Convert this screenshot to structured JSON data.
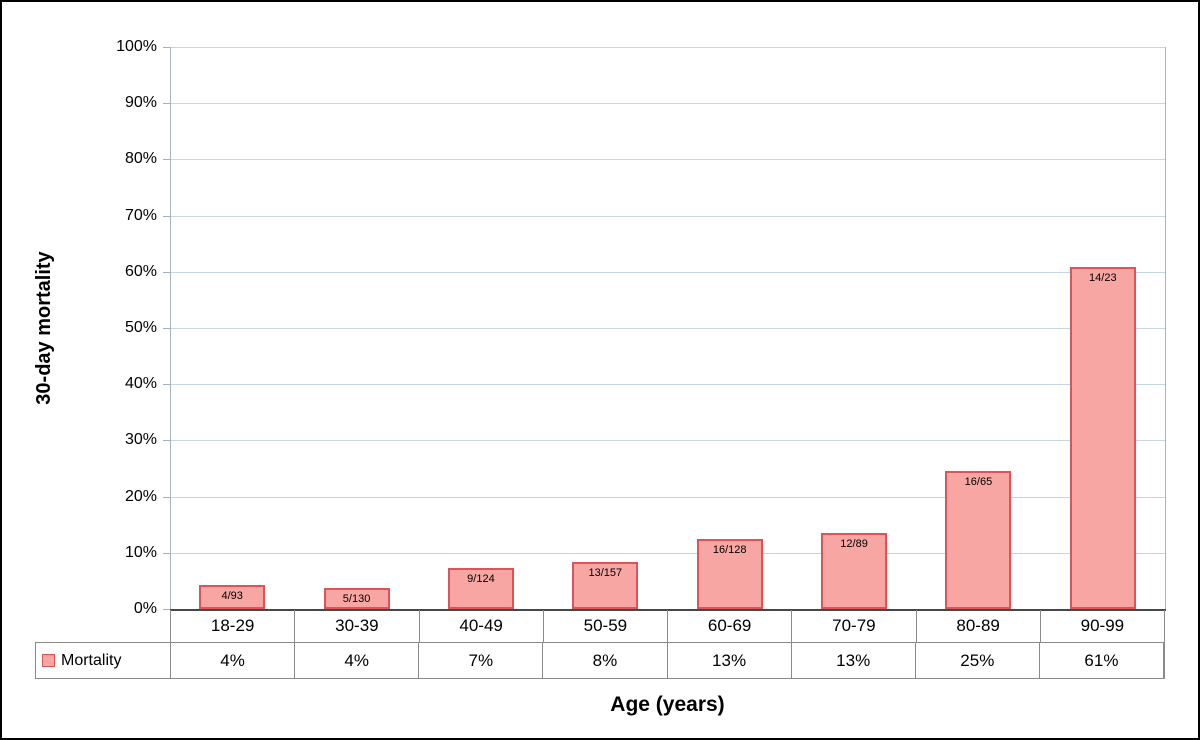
{
  "chart_data": {
    "type": "bar",
    "title": "",
    "xlabel": "Age (years)",
    "ylabel": "30-day mortality",
    "ylim": [
      0,
      100
    ],
    "ytick_step": 10,
    "ytick_labels": [
      "0%",
      "10%",
      "20%",
      "30%",
      "40%",
      "50%",
      "60%",
      "70%",
      "80%",
      "90%",
      "100%"
    ],
    "categories": [
      "18-29",
      "30-39",
      "40-49",
      "50-59",
      "60-69",
      "70-79",
      "80-89",
      "90-99"
    ],
    "series": [
      {
        "name": "Mortality",
        "values_pct": [
          4.3,
          3.8,
          7.3,
          8.3,
          12.5,
          13.5,
          24.6,
          60.9
        ],
        "bar_labels": [
          "4/93",
          "5/130",
          "9/124",
          "13/157",
          "16/128",
          "12/89",
          "16/65",
          "14/23"
        ],
        "table_values": [
          "4%",
          "4%",
          "7%",
          "8%",
          "13%",
          "13%",
          "25%",
          "61%"
        ]
      }
    ],
    "grid": true,
    "legend_position": "data-table-left",
    "colors": {
      "bar_fill": "#f7a6a3",
      "bar_border": "#dd5456",
      "gridline": "#c3d5e6",
      "axis": "#a8b2bc",
      "x_axis": "#474747",
      "table_border": "#8a8a8a"
    }
  }
}
